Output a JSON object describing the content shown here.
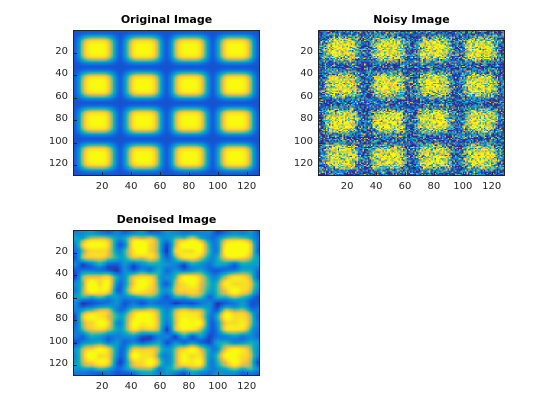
{
  "figure": {
    "background": "#ffffff",
    "colormap": "parula"
  },
  "chart_data": [
    {
      "type": "heatmap",
      "title": "Original Image",
      "xlabel": "",
      "ylabel": "",
      "xlim": [
        0.5,
        128.5
      ],
      "ylim": [
        0.5,
        128.5
      ],
      "y_reversed": true,
      "xticks": [
        20,
        40,
        60,
        80,
        100,
        120
      ],
      "yticks": [
        20,
        40,
        60,
        80,
        100,
        120
      ],
      "image_size": [
        128,
        128
      ],
      "grid_of_blobs": [
        4,
        4
      ],
      "noise_level": 0.0,
      "pattern": "smooth rounded-square blobs"
    },
    {
      "type": "heatmap",
      "title": "Noisy Image",
      "xlabel": "",
      "ylabel": "",
      "xlim": [
        0.5,
        128.5
      ],
      "ylim": [
        0.5,
        128.5
      ],
      "y_reversed": true,
      "xticks": [
        20,
        40,
        60,
        80,
        100,
        120
      ],
      "yticks": [
        20,
        40,
        60,
        80,
        100,
        120
      ],
      "image_size": [
        128,
        128
      ],
      "grid_of_blobs": [
        4,
        4
      ],
      "noise_level": 0.55,
      "pattern": "blobs with strong per-pixel noise"
    },
    {
      "type": "heatmap",
      "title": "Denoised Image",
      "xlabel": "",
      "ylabel": "",
      "xlim": [
        0.5,
        128.5
      ],
      "ylim": [
        0.5,
        128.5
      ],
      "y_reversed": true,
      "xticks": [
        20,
        40,
        60,
        80,
        100,
        120
      ],
      "yticks": [
        20,
        40,
        60,
        80,
        100,
        120
      ],
      "image_size": [
        128,
        128
      ],
      "grid_of_blobs": [
        4,
        4
      ],
      "noise_level": 0.18,
      "pattern": "blobs with blotchy residual artifacts"
    }
  ]
}
